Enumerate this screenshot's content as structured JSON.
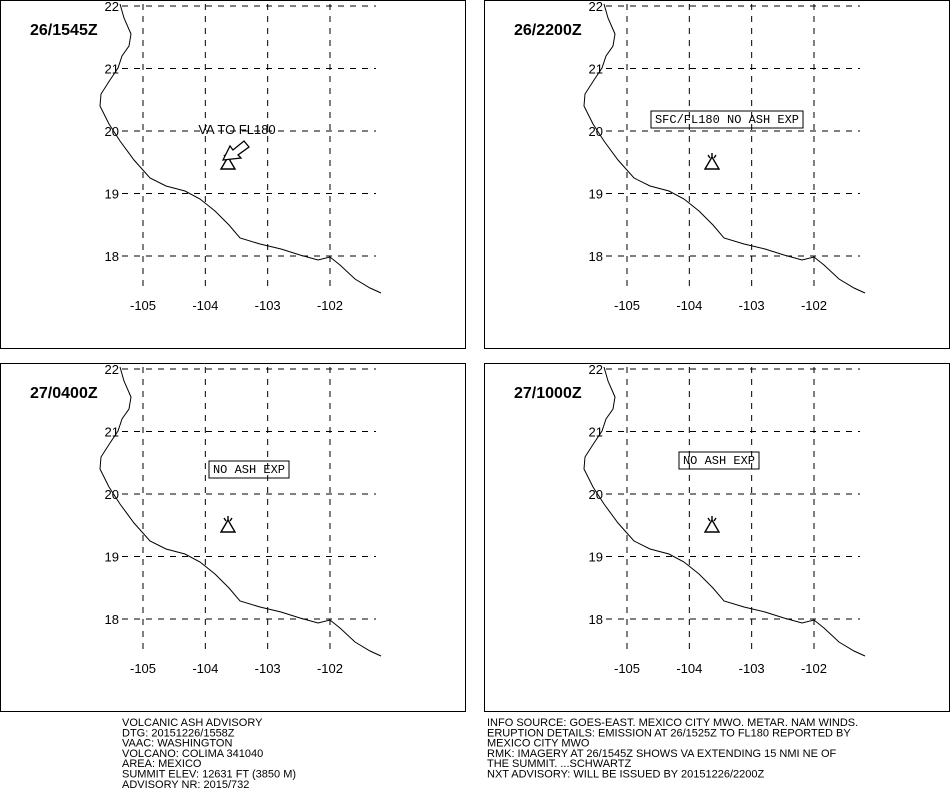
{
  "panels": [
    {
      "time": "26/1545Z",
      "annotation": "VA TO FL180"
    },
    {
      "time": "26/2200Z",
      "annotation": "SFC/FL180 NO ASH EXP"
    },
    {
      "time": "27/0400Z",
      "annotation": "NO ASH EXP"
    },
    {
      "time": "27/1000Z",
      "annotation": "NO ASH EXP"
    }
  ],
  "map": {
    "lat_ticks": [
      22,
      21,
      20,
      19,
      18
    ],
    "lon_ticks": [
      -105,
      -104,
      -103,
      -102
    ]
  },
  "advisory": {
    "left": [
      "VOLCANIC ASH ADVISORY",
      "DTG: 20151226/1558Z",
      "VAAC: WASHINGTON",
      "VOLCANO: COLIMA 341040",
      "AREA: MEXICO",
      "SUMMIT ELEV: 12631 FT (3850 M)",
      "ADVISORY NR: 2015/732"
    ],
    "right": [
      "INFO SOURCE: GOES-EAST. MEXICO CITY MWO. METAR. NAM WINDS.",
      "ERUPTION DETAILS: EMISSION AT 26/1525Z TO FL180 REPORTED BY",
      "MEXICO CITY MWO",
      "RMK: IMAGERY AT 26/1545Z SHOWS VA EXTENDING 15 NMI NE OF",
      "THE SUMMIT. ...SCHWARTZ",
      "NXT ADVISORY: WILL BE ISSUED BY 20151226/2200Z"
    ]
  }
}
